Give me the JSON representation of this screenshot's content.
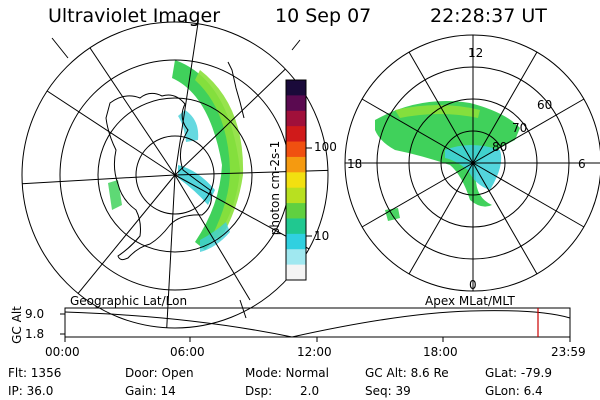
{
  "header": {
    "title": "Ultraviolet Imager",
    "date": "10 Sep 07",
    "time": "22:28:37 UT"
  },
  "colorbar": {
    "label": "photon cm-2s-1",
    "ticks": [
      "100",
      "10"
    ],
    "colors": [
      "#1a0a3a",
      "#5a0a50",
      "#a0103a",
      "#d01a1a",
      "#f05010",
      "#f59a10",
      "#f2e010",
      "#b8e020",
      "#60d040",
      "#20c890",
      "#30d0e0",
      "#a0e8f0",
      "#f4f4f4"
    ]
  },
  "panels": {
    "geographic_label": "Geographic Lat/Lon",
    "apex_label": "Apex MLat/MLT",
    "mlt_labels": {
      "top": "12",
      "left": "18",
      "right": "6",
      "bottom": "0"
    },
    "mlat_labels": [
      "60",
      "70",
      "80"
    ]
  },
  "timeline": {
    "ylabel": "GC Alt",
    "yticks": [
      "9.0",
      "1.8"
    ],
    "xticks": [
      "00:00",
      "06:00",
      "12:00",
      "18:00",
      "23:59"
    ],
    "current_marker_time": "22:28:37",
    "line_color": "#000000",
    "marker_color": "#cc0000"
  },
  "info": {
    "flt": "Flt: 1356",
    "ip": "IP: 36.0",
    "door": "Door: Open",
    "gain": "Gain: 14",
    "mode": "Mode: Normal",
    "dsp_label": "Dsp:",
    "dsp_value": "2.0",
    "gc_alt": "GC Alt: 8.6 Re",
    "seq": "Seq: 39",
    "glat": "GLat: -79.9",
    "glon": "GLon:   6.4"
  }
}
